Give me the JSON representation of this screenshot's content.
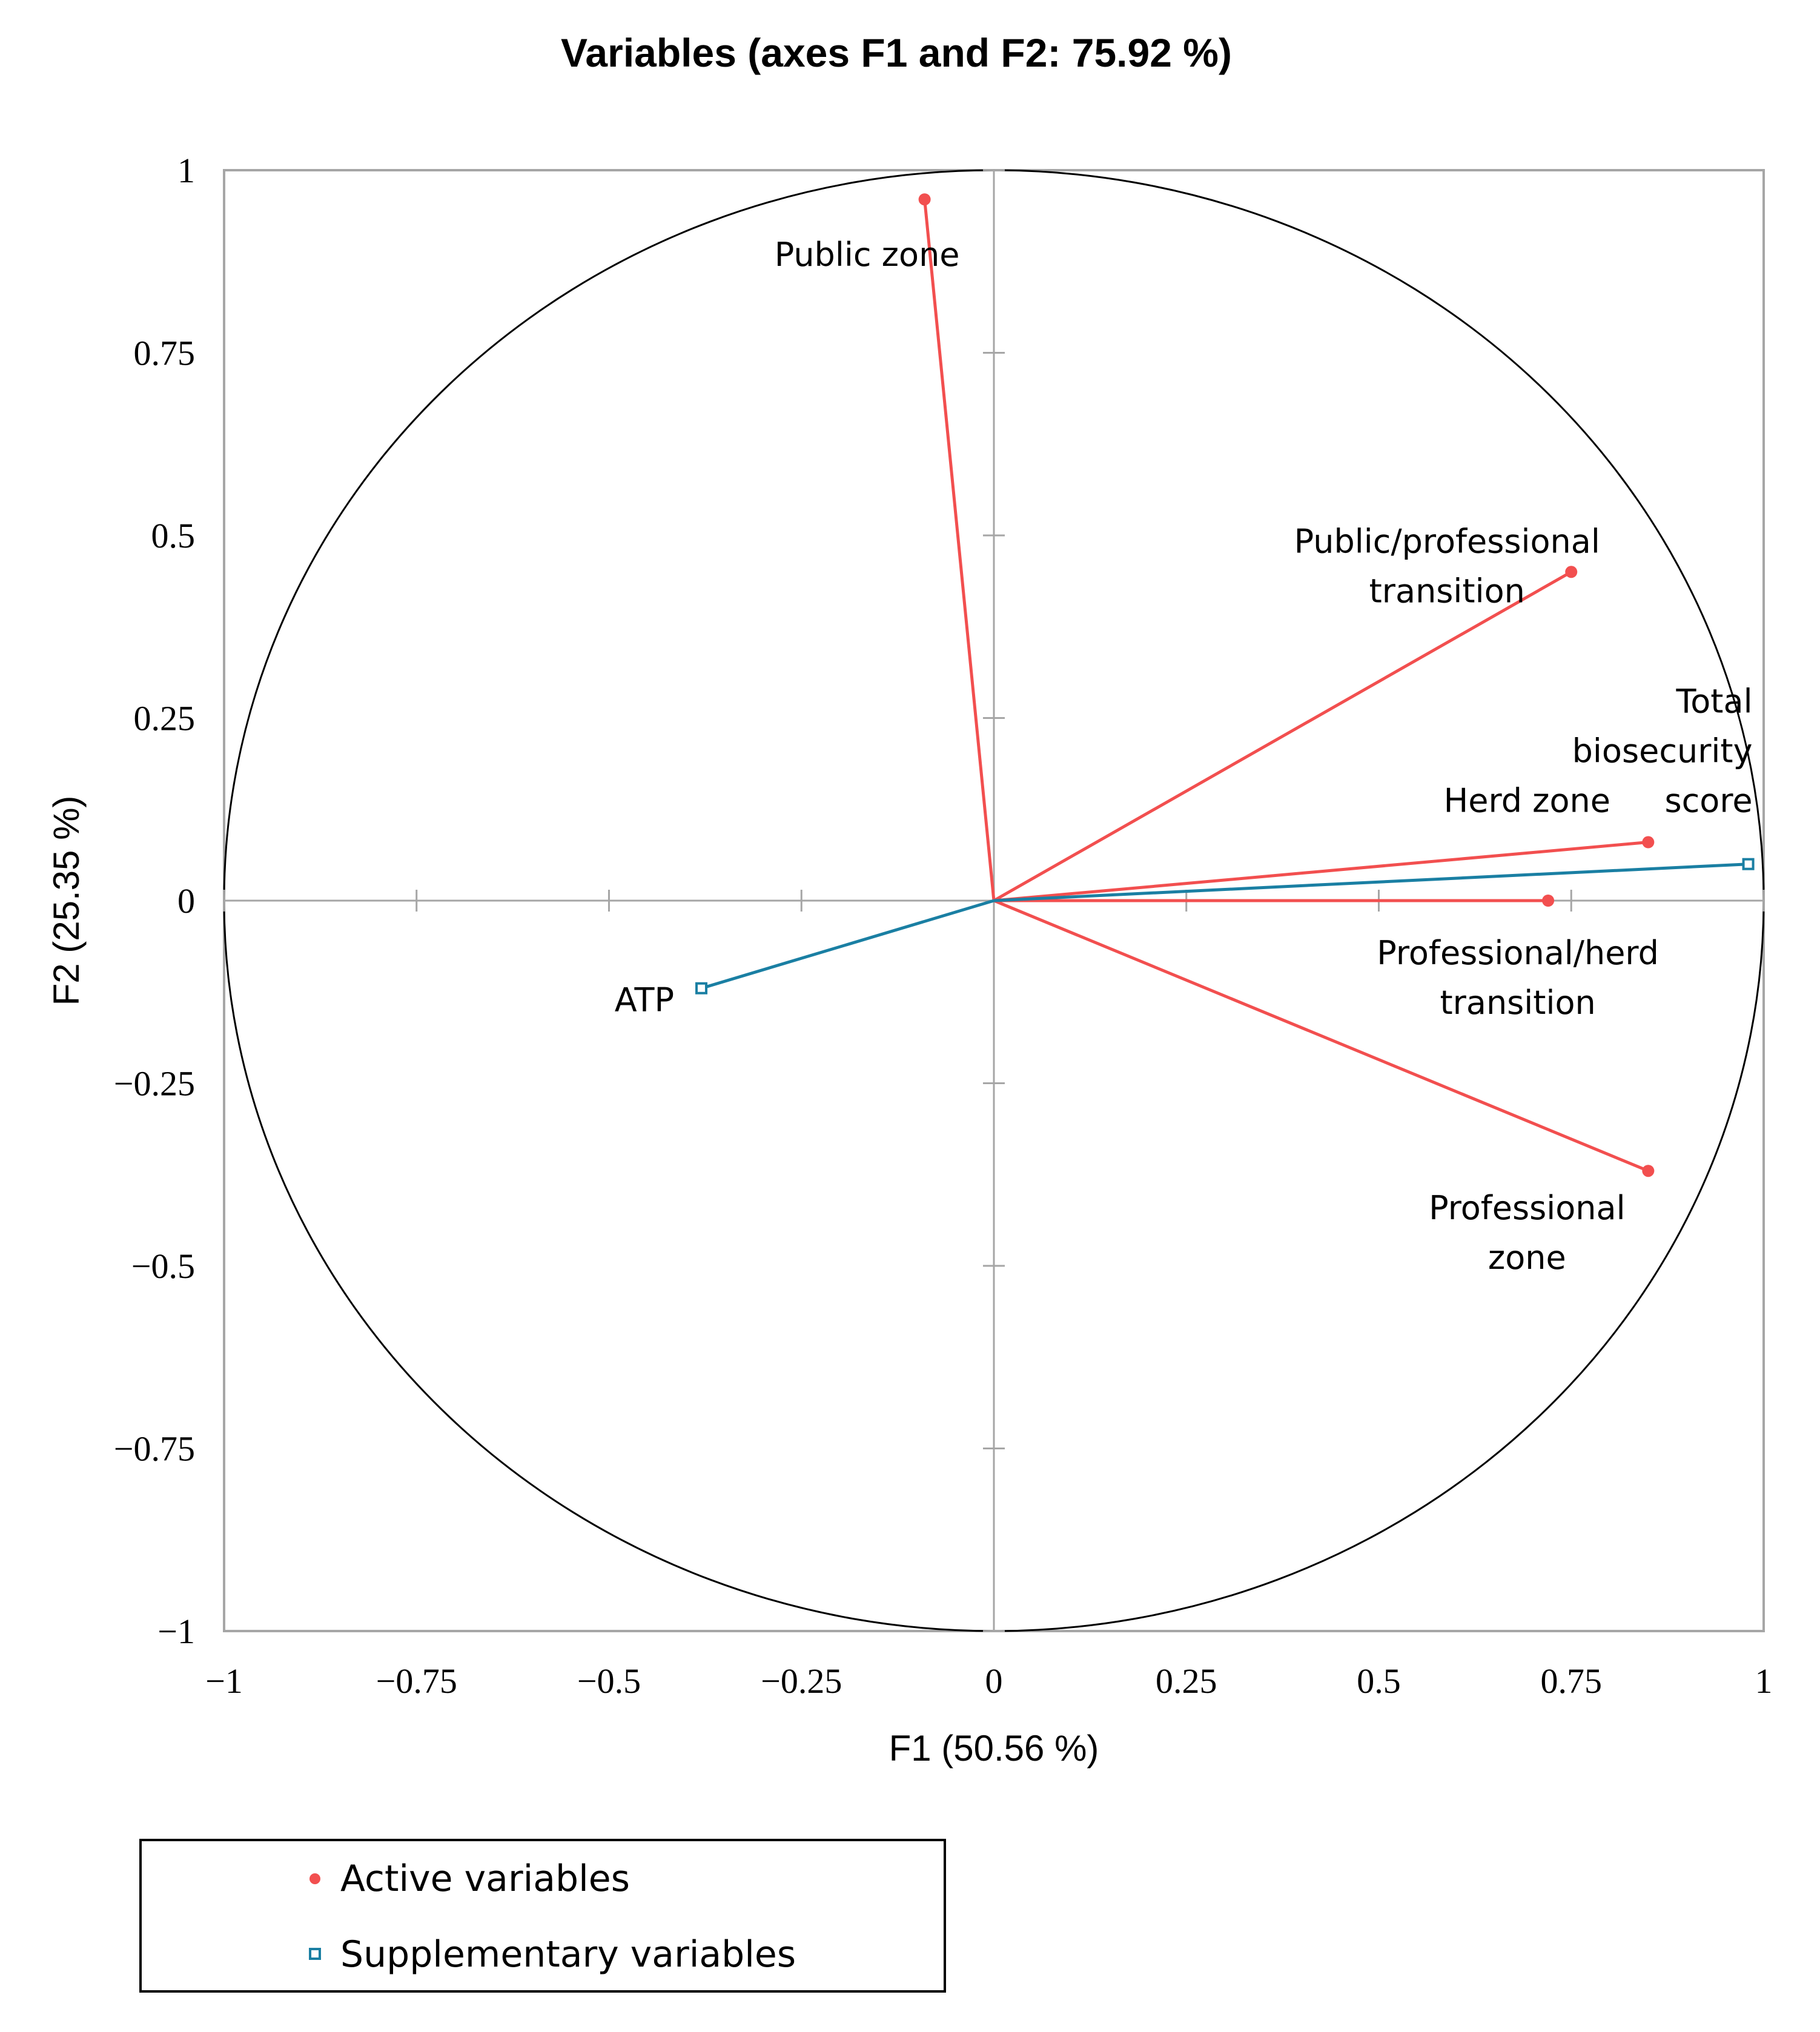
{
  "chart_data": {
    "type": "scatter",
    "title": "Variables (axes F1 and F2: 75.92 %)",
    "xlabel": "F1 (50.56 %)",
    "ylabel": "F2 (25.35 %)",
    "xlim": [
      -1,
      1
    ],
    "ylim": [
      -1,
      1
    ],
    "x_ticks": [
      "−1",
      "−0.75",
      "−0.5",
      "−0.25",
      "0",
      "0.25",
      "0.5",
      "0.75",
      "1"
    ],
    "y_ticks": [
      "1",
      "0.75",
      "0.5",
      "0.25",
      "0",
      "−0.25",
      "−0.5",
      "−0.75",
      "−1"
    ],
    "grid": false,
    "correlation_circle": true,
    "legend_position": "bottom-left",
    "series": [
      {
        "name": "Active variables",
        "marker": "filled-circle",
        "color": "#f24f4f",
        "points": [
          {
            "label_lines": [
              "Public zone"
            ],
            "x": -0.09,
            "y": 0.96
          },
          {
            "label_lines": [
              "Public/professional",
              "transition"
            ],
            "x": 0.75,
            "y": 0.45
          },
          {
            "label_lines": [
              "Herd zone"
            ],
            "x": 0.85,
            "y": 0.08
          },
          {
            "label_lines": [
              "Professional/herd",
              "transition"
            ],
            "x": 0.72,
            "y": 0.0
          },
          {
            "label_lines": [
              "Professional",
              "zone"
            ],
            "x": 0.85,
            "y": -0.37
          }
        ]
      },
      {
        "name": "Supplementary variables",
        "marker": "hollow-square",
        "color": "#1a7fa3",
        "points": [
          {
            "label_lines": [
              "Total",
              "biosecurity",
              "score"
            ],
            "x": 0.98,
            "y": 0.05
          },
          {
            "label_lines": [
              "ATP"
            ],
            "x": -0.38,
            "y": -0.12
          }
        ]
      }
    ]
  }
}
